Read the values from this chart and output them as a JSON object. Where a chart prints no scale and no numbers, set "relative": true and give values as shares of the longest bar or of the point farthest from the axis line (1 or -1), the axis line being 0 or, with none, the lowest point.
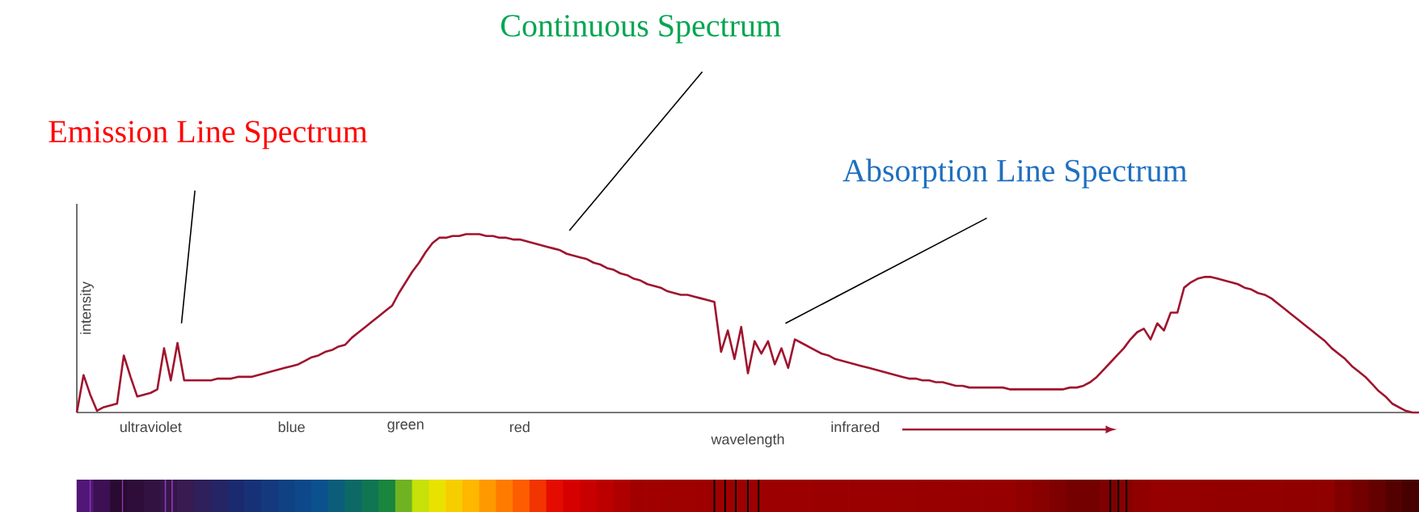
{
  "chart_data": {
    "type": "line",
    "relative": true,
    "xlabel": "wavelength",
    "ylabel": "intensity",
    "color": "#a0142e",
    "categories": [
      null,
      null,
      null,
      null,
      null,
      null,
      null,
      null,
      null,
      null,
      null,
      "ultraviolet",
      null,
      null,
      null,
      null,
      null,
      null,
      null,
      null,
      null,
      null,
      null,
      null,
      null,
      null,
      null,
      null,
      null,
      null,
      null,
      null,
      "blue",
      null,
      null,
      null,
      null,
      null,
      null,
      null,
      null,
      null,
      null,
      null,
      null,
      null,
      null,
      null,
      null,
      "green",
      null,
      null,
      null,
      null,
      null,
      null,
      null,
      null,
      null,
      null,
      null,
      null,
      null,
      null,
      null,
      null,
      "red",
      null,
      null,
      null,
      null,
      null,
      null,
      null,
      null,
      null,
      null,
      null,
      null,
      null,
      null,
      null,
      null,
      null,
      null,
      null,
      null,
      null,
      null,
      null,
      null,
      null,
      null,
      null,
      null,
      null,
      null,
      null,
      null,
      null,
      null,
      null,
      null,
      null,
      null,
      null,
      null,
      null,
      null,
      null,
      null,
      null,
      null,
      null,
      null,
      null,
      "infrared",
      null,
      null,
      null,
      null,
      null,
      null,
      null,
      null,
      null,
      null,
      null,
      null,
      null,
      null,
      null,
      null,
      null,
      null,
      null,
      null,
      null,
      null,
      null,
      null,
      null,
      null,
      null,
      null,
      null,
      null,
      null,
      null,
      null,
      null,
      null,
      null,
      null,
      null,
      null,
      null,
      null,
      null,
      null,
      null,
      null,
      null,
      null,
      null,
      null,
      null,
      null,
      null,
      null,
      null,
      null,
      null,
      null,
      null,
      null,
      null,
      null,
      null,
      null,
      null,
      null,
      null,
      null,
      null,
      null,
      null,
      null,
      null,
      null,
      null,
      null,
      null,
      null,
      null,
      null,
      null,
      null,
      null,
      null,
      null
    ],
    "values": [
      0,
      0.21,
      0.1,
      0.01,
      0.03,
      0.04,
      0.05,
      0.32,
      0.2,
      0.09,
      0.1,
      0.11,
      0.13,
      0.36,
      0.18,
      0.39,
      0.18,
      0.18,
      0.18,
      0.18,
      0.18,
      0.19,
      0.19,
      0.19,
      0.2,
      0.2,
      0.2,
      0.21,
      0.22,
      0.23,
      0.24,
      0.25,
      0.26,
      0.27,
      0.29,
      0.31,
      0.32,
      0.34,
      0.35,
      0.37,
      0.38,
      0.42,
      0.45,
      0.48,
      0.51,
      0.54,
      0.57,
      0.6,
      0.67,
      0.73,
      0.79,
      0.84,
      0.9,
      0.95,
      0.98,
      0.98,
      0.99,
      0.99,
      1.0,
      1.0,
      1.0,
      0.99,
      0.99,
      0.98,
      0.98,
      0.97,
      0.97,
      0.96,
      0.95,
      0.94,
      0.93,
      0.92,
      0.91,
      0.89,
      0.88,
      0.87,
      0.86,
      0.84,
      0.83,
      0.81,
      0.8,
      0.78,
      0.77,
      0.75,
      0.74,
      0.72,
      0.71,
      0.7,
      0.68,
      0.67,
      0.66,
      0.66,
      0.65,
      0.64,
      0.63,
      0.62,
      0.34,
      0.46,
      0.3,
      0.48,
      0.22,
      0.4,
      0.33,
      0.4,
      0.27,
      0.36,
      0.25,
      0.41,
      0.39,
      0.37,
      0.35,
      0.33,
      0.32,
      0.3,
      0.29,
      0.28,
      0.27,
      0.26,
      0.25,
      0.24,
      0.23,
      0.22,
      0.21,
      0.2,
      0.19,
      0.19,
      0.18,
      0.18,
      0.17,
      0.17,
      0.16,
      0.15,
      0.15,
      0.14,
      0.14,
      0.14,
      0.14,
      0.14,
      0.14,
      0.13,
      0.13,
      0.13,
      0.13,
      0.13,
      0.13,
      0.13,
      0.13,
      0.13,
      0.14,
      0.14,
      0.15,
      0.17,
      0.2,
      0.24,
      0.28,
      0.32,
      0.36,
      0.41,
      0.45,
      0.47,
      0.41,
      0.5,
      0.46,
      0.56,
      0.56,
      0.7,
      0.73,
      0.75,
      0.76,
      0.76,
      0.75,
      0.74,
      0.73,
      0.72,
      0.7,
      0.69,
      0.67,
      0.66,
      0.64,
      0.61,
      0.58,
      0.55,
      0.52,
      0.49,
      0.46,
      0.43,
      0.4,
      0.36,
      0.33,
      0.3,
      0.26,
      0.23,
      0.2,
      0.16,
      0.12,
      0.09,
      0.05,
      0.03,
      0.01,
      0,
      0
    ],
    "annotations": [
      "Emission Line Spectrum",
      "Continuous Spectrum",
      "Absorption Line Spectrum"
    ]
  }
}
